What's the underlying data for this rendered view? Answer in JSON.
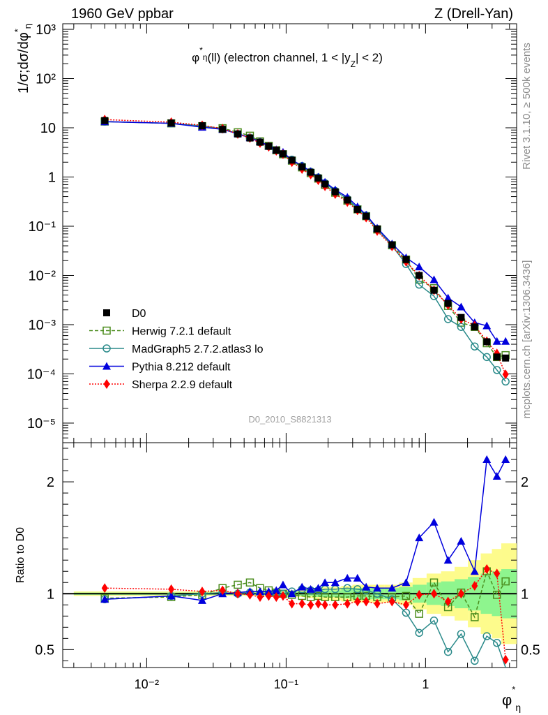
{
  "header": {
    "left": "1960 GeV ppbar",
    "right": "Z (Drell-Yan)"
  },
  "side_labels": {
    "rivet": "Rivet 3.1.10, ≥ 500k events",
    "mcplots": "mcplots.cern.ch [arXiv:1306.3436]"
  },
  "chart_data": [
    {
      "type": "line",
      "panel": "main",
      "title": "φ*η(ll) (electron channel, 1 < |yZ| < 2)",
      "ylabel": "1/σ;dσ/dφ*η",
      "xlabel": "φ*η",
      "xscale": "log",
      "yscale": "log",
      "xlim": [
        0.0025,
        4.5
      ],
      "ylim": [
        4e-06,
        1300
      ],
      "watermark": "D0_2010_S8821313",
      "y_tick_labels": [
        "10⁻⁵",
        "10⁻⁴",
        "10⁻³",
        "10⁻²",
        "10⁻¹",
        "1",
        "10",
        "10²",
        "10³"
      ],
      "legend_position": "lower-left",
      "x": [
        0.005,
        0.015,
        0.025,
        0.035,
        0.045,
        0.055,
        0.065,
        0.075,
        0.085,
        0.095,
        0.11,
        0.13,
        0.15,
        0.17,
        0.19,
        0.225,
        0.275,
        0.325,
        0.375,
        0.45,
        0.575,
        0.725,
        0.9,
        1.15,
        1.45,
        1.8,
        2.25,
        2.75,
        3.25,
        3.75
      ],
      "series": [
        {
          "name": "D0",
          "color": "#000000",
          "marker": "square-filled",
          "values": [
            14.0,
            12.5,
            11.0,
            9.3,
            7.5,
            6.2,
            5.1,
            4.2,
            3.5,
            2.95,
            2.2,
            1.6,
            1.25,
            0.95,
            0.72,
            0.5,
            0.34,
            0.22,
            0.16,
            0.088,
            0.042,
            0.021,
            0.01,
            0.005,
            0.0027,
            0.0014,
            0.0009,
            0.00045,
            0.00022,
            0.00021
          ]
        },
        {
          "name": "Herwig 7.2.1 default",
          "color": "#4a8c1c",
          "marker": "square-open",
          "line": "dashed",
          "values": [
            13.4,
            12.3,
            10.8,
            9.8,
            8.1,
            6.9,
            5.3,
            4.3,
            3.5,
            2.9,
            2.15,
            1.57,
            1.2,
            0.93,
            0.69,
            0.48,
            0.33,
            0.22,
            0.16,
            0.086,
            0.041,
            0.021,
            0.0082,
            0.0055,
            0.0024,
            0.0011,
            0.0009,
            0.00042,
            0.00022,
            0.00024
          ]
        },
        {
          "name": "MadGraph5 2.7.2.atlas3 lo",
          "color": "#2a8a8a",
          "marker": "circle-open",
          "line": "solid",
          "values": [
            13.3,
            12.3,
            11.0,
            9.4,
            7.5,
            6.3,
            5.1,
            4.2,
            3.5,
            2.95,
            2.25,
            1.67,
            1.28,
            0.98,
            0.75,
            0.52,
            0.36,
            0.23,
            0.165,
            0.088,
            0.04,
            0.017,
            0.0065,
            0.0038,
            0.0013,
            0.0009,
            0.00036,
            0.00022,
            0.00012,
            7e-05
          ]
        },
        {
          "name": "Pythia 8.212 default",
          "color": "#0000dd",
          "marker": "triangle-filled",
          "line": "solid",
          "values": [
            13.3,
            12.3,
            10.3,
            9.3,
            7.6,
            6.3,
            5.2,
            4.3,
            3.6,
            3.2,
            2.2,
            1.7,
            1.3,
            1.0,
            0.79,
            0.55,
            0.39,
            0.25,
            0.17,
            0.092,
            0.044,
            0.023,
            0.015,
            0.0082,
            0.0035,
            0.0023,
            0.0011,
            0.00095,
            0.00046,
            0.00046
          ]
        },
        {
          "name": "Sherpa 2.2.9 default",
          "color": "#ff0000",
          "marker": "diamond-filled",
          "line": "dotted",
          "values": [
            14.7,
            13.0,
            11.2,
            9.6,
            7.5,
            6.2,
            4.9,
            4.1,
            3.4,
            2.9,
            2.0,
            1.45,
            1.12,
            0.86,
            0.65,
            0.45,
            0.31,
            0.21,
            0.15,
            0.08,
            0.039,
            0.019,
            0.0099,
            0.005,
            0.0025,
            0.0013,
            0.00096,
            0.00046,
            0.00026,
            9.8e-05
          ]
        }
      ]
    },
    {
      "type": "line",
      "panel": "ratio",
      "ylabel": "Ratio to D0",
      "xscale": "log",
      "xlim": [
        0.0025,
        4.5
      ],
      "ylim": [
        0.34,
        2.35
      ],
      "y_ticks": [
        0.5,
        1,
        2
      ],
      "x_tick_labels": [
        "10⁻²",
        "10⁻¹",
        "1"
      ],
      "x": [
        0.005,
        0.015,
        0.025,
        0.035,
        0.045,
        0.055,
        0.065,
        0.075,
        0.085,
        0.095,
        0.11,
        0.13,
        0.15,
        0.17,
        0.19,
        0.225,
        0.275,
        0.325,
        0.375,
        0.45,
        0.575,
        0.725,
        0.9,
        1.15,
        1.45,
        1.8,
        2.25,
        2.75,
        3.25,
        3.75
      ],
      "series": [
        {
          "name": "Herwig 7.2.1 default",
          "color": "#4a8c1c",
          "values": [
            0.96,
            0.97,
            0.99,
            1.05,
            1.08,
            1.1,
            1.05,
            1.03,
            1.01,
            1.0,
            0.99,
            0.98,
            0.97,
            0.98,
            0.97,
            0.97,
            0.97,
            0.98,
            0.98,
            0.97,
            0.97,
            0.98,
            0.82,
            1.1,
            0.88,
            1.01,
            0.79,
            1.2,
            0.99,
            1.11
          ]
        },
        {
          "name": "MadGraph5 2.7.2.atlas3 lo",
          "color": "#2a8a8a",
          "values": [
            0.95,
            0.98,
            1.0,
            1.01,
            1.0,
            1.01,
            1.0,
            1.0,
            1.01,
            1.0,
            1.02,
            1.04,
            1.03,
            1.03,
            1.04,
            1.04,
            1.05,
            1.04,
            1.03,
            1.0,
            0.95,
            0.83,
            0.65,
            0.76,
            0.48,
            0.64,
            0.4,
            0.62,
            0.56,
            0.3
          ]
        },
        {
          "name": "Pythia 8.212 default",
          "color": "#0000dd",
          "values": [
            0.95,
            0.98,
            0.94,
            1.0,
            1.01,
            1.02,
            1.02,
            1.02,
            1.03,
            1.08,
            1.0,
            1.06,
            1.04,
            1.05,
            1.1,
            1.1,
            1.14,
            1.14,
            1.06,
            1.05,
            1.05,
            1.1,
            1.5,
            1.64,
            1.3,
            1.47,
            1.2,
            2.2,
            2.05,
            2.2
          ]
        },
        {
          "name": "Sherpa 2.2.9 default",
          "color": "#ff0000",
          "values": [
            1.05,
            1.04,
            1.02,
            1.03,
            1.0,
            0.99,
            0.97,
            0.98,
            0.97,
            0.98,
            0.91,
            0.91,
            0.9,
            0.91,
            0.9,
            0.9,
            0.91,
            0.93,
            0.93,
            0.91,
            0.93,
            0.9,
            0.99,
            1.0,
            0.93,
            1.0,
            1.07,
            1.22,
            1.18,
            0.41
          ]
        }
      ]
    }
  ]
}
